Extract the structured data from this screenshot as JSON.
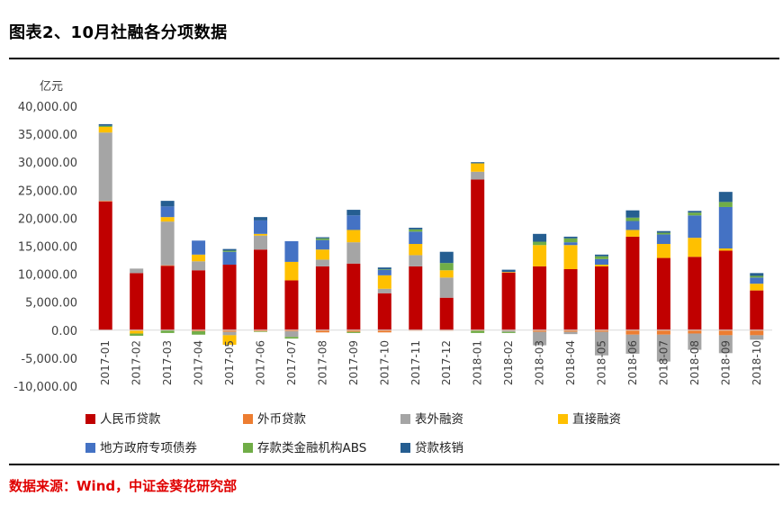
{
  "title": "图表2、10月社融各分项数据",
  "source": "数据来源：Wind，中证金葵花研究部",
  "chart_data": {
    "type": "bar",
    "stacked": true,
    "unit": "亿元",
    "ylim": [
      -10000,
      40000
    ],
    "yticks": [
      "-10,000.00",
      "-5,000.00",
      "0.00",
      "5,000.00",
      "10,000.00",
      "15,000.00",
      "20,000.00",
      "25,000.00",
      "30,000.00",
      "35,000.00",
      "40,000.00"
    ],
    "categories": [
      "2017-01",
      "2017-02",
      "2017-03",
      "2017-04",
      "2017-05",
      "2017-06",
      "2017-07",
      "2017-08",
      "2017-09",
      "2017-10",
      "2017-11",
      "2017-12",
      "2018-01",
      "2018-02",
      "2018-03",
      "2018-04",
      "2018-05",
      "2018-06",
      "2018-07",
      "2018-08",
      "2018-09",
      "2018-10"
    ],
    "series": [
      {
        "name": "人民币贷款",
        "color": "#c00000",
        "values": [
          23000,
          10200,
          11500,
          10700,
          11700,
          14400,
          8900,
          11400,
          11900,
          6600,
          11400,
          5800,
          26900,
          10300,
          11400,
          10900,
          11400,
          16700,
          12900,
          13100,
          14200,
          7100
        ]
      },
      {
        "name": "外币贷款",
        "color": "#ed7d31",
        "values": [
          100,
          -100,
          100,
          -200,
          -300,
          -200,
          -200,
          -400,
          -300,
          -400,
          -100,
          -100,
          -100,
          -100,
          -300,
          -300,
          -300,
          -800,
          -800,
          -600,
          -900,
          -900
        ]
      },
      {
        "name": "表外融资",
        "color": "#a5a5a5",
        "values": [
          12200,
          800,
          7800,
          1600,
          -600,
          2500,
          -1000,
          1200,
          3800,
          800,
          2000,
          3600,
          1400,
          -200,
          -2400,
          -400,
          -4200,
          -3400,
          -4800,
          -2900,
          -3200,
          -800
        ]
      },
      {
        "name": "直接融资",
        "color": "#ffc000",
        "values": [
          1000,
          -500,
          800,
          1200,
          -1700,
          300,
          3300,
          1800,
          2200,
          2400,
          2000,
          1300,
          1500,
          100,
          3800,
          4300,
          300,
          1200,
          2500,
          3400,
          400,
          1200
        ]
      },
      {
        "name": "地方政府专项债券",
        "color": "#4472c4",
        "values": [
          0,
          0,
          1900,
          2500,
          2300,
          2400,
          3700,
          1700,
          2600,
          1000,
          2200,
          0,
          0,
          0,
          0,
          500,
          1000,
          1600,
          1700,
          4000,
          7400,
          1100
        ]
      },
      {
        "name": "存款类金融机构ABS",
        "color": "#70ad47",
        "values": [
          200,
          -400,
          -500,
          -600,
          200,
          -100,
          -300,
          300,
          -200,
          100,
          400,
          1300,
          -400,
          -200,
          600,
          700,
          500,
          600,
          300,
          500,
          900,
          300
        ]
      },
      {
        "name": "贷款核销",
        "color": "#255e91",
        "values": [
          300,
          0,
          1000,
          0,
          300,
          600,
          0,
          200,
          1000,
          300,
          300,
          2000,
          200,
          400,
          1400,
          300,
          300,
          1300,
          300,
          300,
          1800,
          500
        ]
      }
    ]
  }
}
